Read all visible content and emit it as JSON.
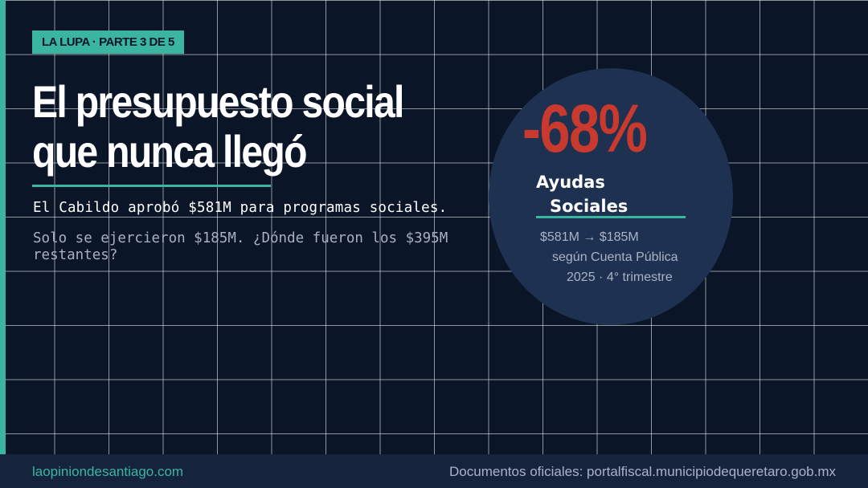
{
  "tag": "LA LUPA · PARTE 3 DE 5",
  "headline": {
    "line1": "El presupuesto social",
    "line2": "que nunca llegó"
  },
  "subtitle": "El Cabildo aprobó $581M para programas sociales.",
  "question": "Solo se ejercieron $185M. ¿Dónde fueron los $395M restantes?",
  "stat": {
    "value": "-68%",
    "label_line1": "Ayudas",
    "label_line2": "Sociales",
    "note_line1": "$581M → $185M",
    "note_line2": "según Cuenta Pública",
    "note_line3": "2025 · 4° trimestre"
  },
  "footer": {
    "site": "laopiniondesantiago.com",
    "source": "Documentos oficiales: portalfiscal.municipiodequeretaro.gob.mx"
  },
  "colors": {
    "background": "#0b1528",
    "accent": "#3ab5a0",
    "alert": "#c8392e",
    "circle": "#1e3150",
    "footer": "#15233d"
  }
}
